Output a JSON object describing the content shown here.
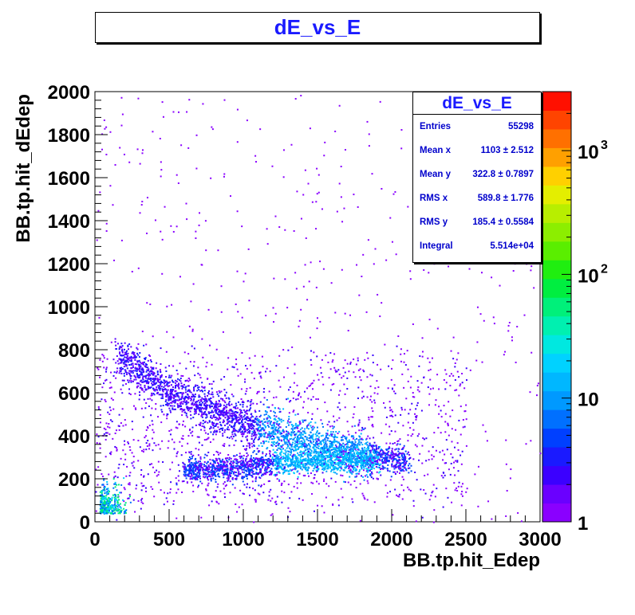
{
  "window": {
    "title": "dE_vs_E"
  },
  "stats": {
    "title": "dE_vs_E",
    "rows": [
      {
        "label": "Entries",
        "value": "55298"
      },
      {
        "label": "Mean x",
        "value": "1103 ±  2.512"
      },
      {
        "label": "Mean y",
        "value": "322.8 ± 0.7897"
      },
      {
        "label": "RMS x",
        "value": "589.8 ±  1.776"
      },
      {
        "label": "RMS y",
        "value": "185.4 ± 0.5584"
      },
      {
        "label": "Integral",
        "value": "5.514e+04"
      }
    ]
  },
  "chart_data": {
    "type": "heatmap",
    "title": "dE_vs_E",
    "xlabel": "BB.tp.hit_Edep",
    "ylabel": "BB.tp.hit_dEdep",
    "xlim": [
      0,
      3000
    ],
    "ylim": [
      0,
      2000
    ],
    "xticks": [
      "0",
      "500",
      "1000",
      "1500",
      "2000",
      "2500",
      "3000"
    ],
    "yticks": [
      "0",
      "200",
      "400",
      "600",
      "800",
      "1000",
      "1200",
      "1400",
      "1600",
      "1800",
      "2000"
    ],
    "colorbar": {
      "scale": "log",
      "range": [
        1,
        3000
      ],
      "tick_labels": [
        "1",
        "10",
        "10",
        "10"
      ],
      "tick_exponents": [
        "",
        "",
        "2",
        "3"
      ]
    },
    "bands": [
      {
        "name": "upper branch",
        "points": [
          [
            150,
            780
          ],
          [
            500,
            600
          ],
          [
            1000,
            460
          ],
          [
            1500,
            360
          ],
          [
            1900,
            300
          ]
        ]
      },
      {
        "name": "lower branch",
        "points": [
          [
            600,
            240
          ],
          [
            1000,
            260
          ],
          [
            1500,
            290
          ],
          [
            1900,
            300
          ],
          [
            2100,
            290
          ]
        ]
      },
      {
        "name": "low-energy blob",
        "points": [
          [
            30,
            40
          ],
          [
            100,
            80
          ]
        ]
      }
    ]
  }
}
